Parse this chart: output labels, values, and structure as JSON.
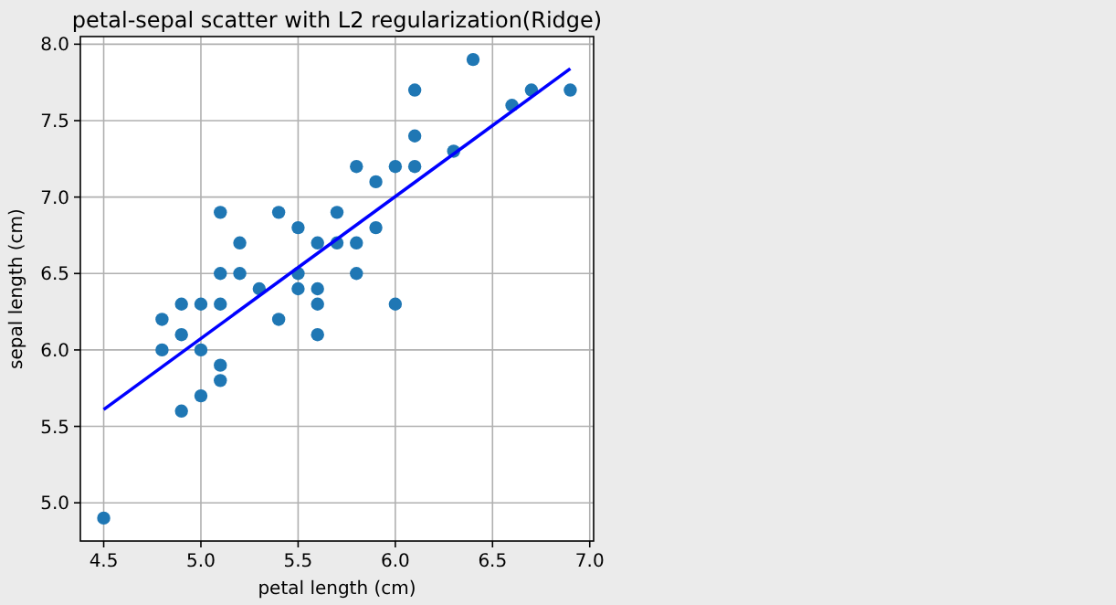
{
  "chart_data": {
    "type": "scatter",
    "title": "petal-sepal scatter with L2 regularization(Ridge)",
    "xlabel": "petal length (cm)",
    "ylabel": "sepal length (cm)",
    "xlim": [
      4.38,
      7.02
    ],
    "ylim": [
      4.75,
      8.05
    ],
    "xticks": [
      {
        "value": 4.5,
        "label": "4.5"
      },
      {
        "value": 5,
        "label": "5.0"
      },
      {
        "value": 5.5,
        "label": "5.5"
      },
      {
        "value": 6,
        "label": "6.0"
      },
      {
        "value": 6.5,
        "label": "6.5"
      },
      {
        "value": 7,
        "label": "7.0"
      }
    ],
    "yticks": [
      {
        "value": 5,
        "label": "5.0"
      },
      {
        "value": 5.5,
        "label": "5.5"
      },
      {
        "value": 6,
        "label": "6.0"
      },
      {
        "value": 6.5,
        "label": "6.5"
      },
      {
        "value": 7,
        "label": "7.0"
      },
      {
        "value": 7.5,
        "label": "7.5"
      },
      {
        "value": 8,
        "label": "8.0"
      }
    ],
    "grid": true,
    "series": [
      {
        "marker": "circle",
        "color": "#1f77b4",
        "x": [
          4.5,
          4.8,
          4.8,
          4.9,
          4.9,
          4.9,
          5.0,
          5.0,
          5.0,
          5.1,
          5.1,
          5.1,
          5.1,
          5.1,
          5.2,
          5.2,
          5.3,
          5.4,
          5.4,
          5.5,
          5.5,
          5.5,
          5.6,
          5.6,
          5.6,
          5.6,
          5.7,
          5.7,
          5.8,
          5.8,
          5.8,
          5.9,
          5.9,
          6.0,
          6.0,
          6.1,
          6.1,
          6.1,
          6.3,
          6.4,
          6.6,
          6.7,
          6.9
        ],
        "values": [
          4.9,
          6.2,
          6.0,
          5.6,
          6.1,
          6.3,
          6.3,
          6.0,
          5.7,
          6.9,
          6.5,
          6.3,
          5.9,
          5.8,
          6.7,
          6.5,
          6.4,
          6.9,
          6.2,
          6.8,
          6.5,
          6.4,
          6.7,
          6.4,
          6.3,
          6.1,
          6.9,
          6.7,
          7.2,
          6.7,
          6.5,
          7.1,
          6.8,
          7.2,
          6.3,
          7.7,
          7.4,
          7.2,
          7.3,
          7.9,
          7.6,
          7.7,
          7.7
        ]
      },
      {
        "type": "line",
        "color": "#0000ff",
        "line_style": "solid",
        "x": [
          4.5,
          6.9
        ],
        "values": [
          5.61,
          7.84
        ]
      }
    ]
  }
}
